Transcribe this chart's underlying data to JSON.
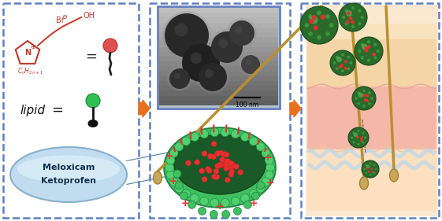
{
  "bg_color": "#ffffff",
  "box_color": "#6080c0",
  "arrow_color": "#e8701a",
  "panel1": {
    "ring_color": "#c0392b",
    "lipid_color": "#27ae60",
    "pill_bg_top": "#c8e8f8",
    "pill_bg_bot": "#e8f4fc",
    "pill_border": "#88b8d8",
    "pill_text1": "Meloxicam",
    "pill_text2": "Ketoprofen",
    "lipid_label": "lipid ="
  },
  "panel2": {
    "tem_bg_light": "#c8d8e0",
    "tem_bg_dark": "#303840",
    "scalebar_text": "100 nm",
    "lipo_outer": "#3cc060",
    "lipo_inner": "#1a6030",
    "lipo_lip_bright": "#50d070",
    "drug_color": "#e83030",
    "plus_color": "#e83030"
  },
  "panel3": {
    "skin_surface": "#f5ddb0",
    "skin_dermis_top": "#f8c8b8",
    "skin_dermis_bot": "#f0a090",
    "skin_fat": "#fce8c8",
    "hair_color": "#c8a040",
    "lipo_color": "#2a6a2a",
    "lipo_bright": "#50a050"
  }
}
